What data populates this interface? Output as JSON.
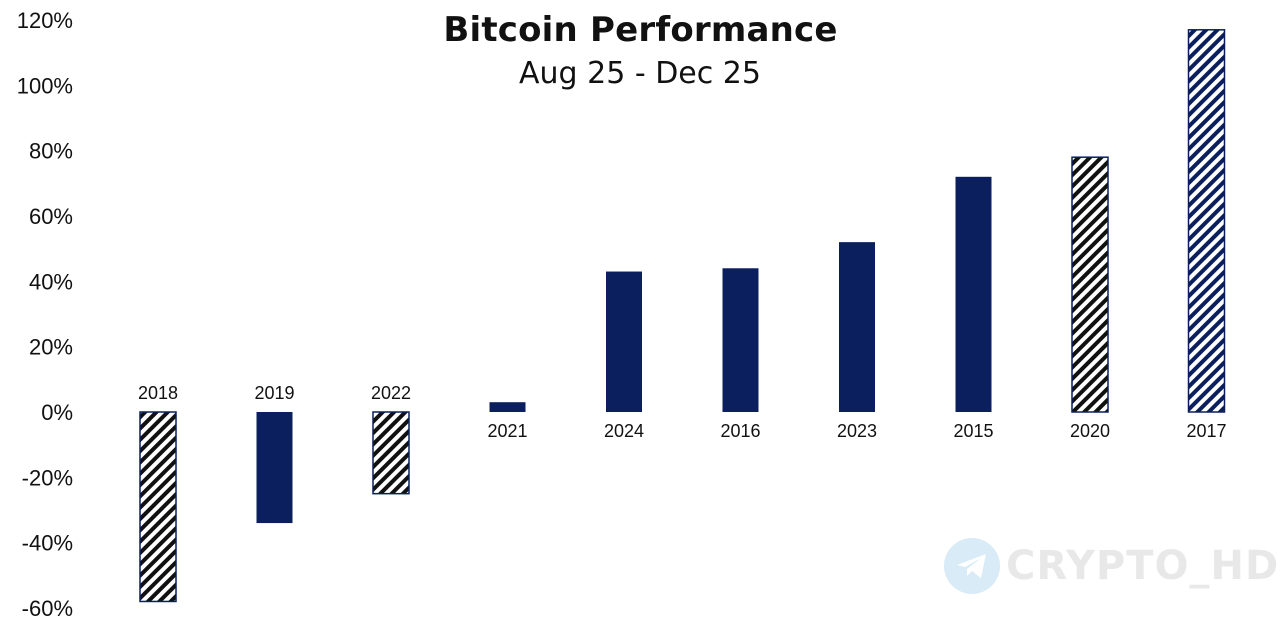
{
  "chart_data": {
    "type": "bar",
    "title": "Bitcoin Performance",
    "subtitle": "Aug 25 - Dec 25",
    "xlabel": "",
    "ylabel": "",
    "ylim": [
      -60,
      120
    ],
    "yticks": [
      120,
      100,
      80,
      60,
      40,
      20,
      0,
      -20,
      -40,
      -60
    ],
    "ytick_labels": [
      "120%",
      "100%",
      "80%",
      "60%",
      "40%",
      "20%",
      "0%",
      "-20%",
      "-40%",
      "-60%"
    ],
    "grid": false,
    "legend": "none",
    "categories": [
      "2018",
      "2019",
      "2022",
      "2021",
      "2024",
      "2016",
      "2023",
      "2015",
      "2020",
      "2017"
    ],
    "values": [
      -58,
      -34,
      -25,
      3,
      43,
      44,
      52,
      72,
      78,
      117
    ],
    "styles": [
      "hatch-black",
      "solid",
      "hatch-black",
      "solid",
      "solid",
      "solid",
      "solid",
      "solid",
      "hatch-black",
      "hatch-navy"
    ],
    "colors": {
      "navy": "#0b1f5e",
      "black": "#111111"
    }
  },
  "watermark": {
    "text": "CRYPTO_HD",
    "icon": "telegram-icon"
  }
}
